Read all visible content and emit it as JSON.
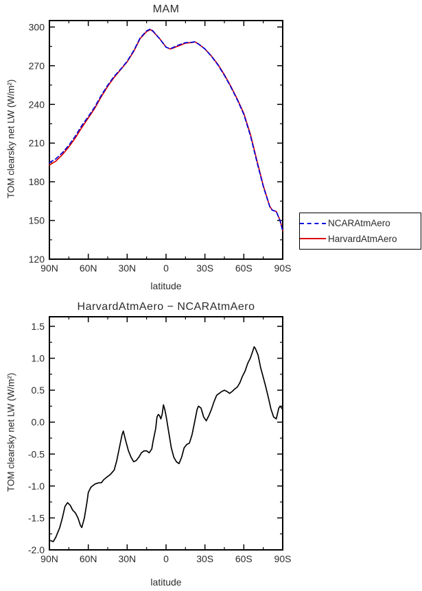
{
  "style": {
    "background": "#ffffff",
    "axis_color": "#000000",
    "text_color": "#2b2b2b"
  },
  "chart_data": [
    {
      "type": "line",
      "title": "MAM",
      "xlabel": "latitude",
      "ylabel": "TOM clearsky net LW (W/m²)",
      "xlim": [
        90,
        -90
      ],
      "ylim": [
        120,
        305
      ],
      "xticks": [
        90,
        60,
        30,
        0,
        -30,
        -60,
        -90
      ],
      "xtick_labels": [
        "90N",
        "60N",
        "30N",
        "0",
        "30S",
        "60S",
        "90S"
      ],
      "x_minor": [
        75,
        45,
        15,
        -15,
        -45,
        -75
      ],
      "yticks": [
        120,
        150,
        180,
        210,
        240,
        270,
        300
      ],
      "ytick_labels": [
        "120",
        "150",
        "180",
        "210",
        "240",
        "270",
        "300"
      ],
      "y_minor": [
        135,
        165,
        195,
        225,
        255,
        285
      ],
      "grid": false,
      "legend_position": "outside-right",
      "series": [
        {
          "name": "NCARAtmAero",
          "color": "#0000dd",
          "dash": "6 4",
          "x": [
            90,
            85,
            80,
            75,
            70,
            65,
            60,
            55,
            50,
            45,
            40,
            35,
            30,
            25,
            20,
            15,
            12,
            10,
            5,
            0,
            -3,
            -5,
            -10,
            -15,
            -20,
            -22,
            -25,
            -30,
            -35,
            -40,
            -45,
            -50,
            -55,
            -60,
            -65,
            -70,
            -75,
            -80,
            -82,
            -85,
            -88,
            -90
          ],
          "y": [
            194.9,
            197.8,
            202.5,
            208.3,
            215.4,
            223.6,
            230.6,
            238,
            247,
            254.9,
            261.8,
            267.3,
            273.4,
            281.6,
            291.5,
            297,
            298.5,
            296.8,
            290.9,
            284.4,
            283.2,
            283.9,
            286.2,
            287.9,
            288.2,
            288.5,
            286.8,
            283,
            277.3,
            270.6,
            262.5,
            253.5,
            243.5,
            232.3,
            216,
            195.9,
            176.3,
            160.7,
            157.9,
            157,
            149.8,
            141.8
          ]
        },
        {
          "name": "HarvardAtmAero",
          "color": "#dd0000",
          "dash": null,
          "x": [
            90,
            85,
            80,
            75,
            70,
            65,
            60,
            55,
            50,
            45,
            40,
            35,
            30,
            25,
            20,
            15,
            12,
            10,
            5,
            0,
            -3,
            -5,
            -10,
            -15,
            -20,
            -22,
            -25,
            -30,
            -35,
            -40,
            -45,
            -50,
            -55,
            -60,
            -65,
            -70,
            -75,
            -80,
            -82,
            -85,
            -88,
            -90
          ],
          "y": [
            193,
            196,
            201,
            207,
            214,
            222,
            229.5,
            237,
            246,
            254,
            261,
            267,
            273,
            281,
            291,
            296.5,
            298,
            296.5,
            291,
            284.5,
            283,
            283.5,
            285.5,
            287.5,
            288,
            288.5,
            287,
            283,
            277.5,
            271,
            263,
            254,
            244,
            233,
            217,
            197,
            177,
            161,
            158,
            157,
            150,
            142
          ]
        }
      ]
    },
    {
      "type": "line",
      "title": "HarvardAtmAero − NCARAtmAero",
      "xlabel": "latitude",
      "ylabel": "TOM clearsky net LW (W/m²)",
      "xlim": [
        90,
        -90
      ],
      "ylim": [
        -2.0,
        1.65
      ],
      "xticks": [
        90,
        60,
        30,
        0,
        -30,
        -60,
        -90
      ],
      "xtick_labels": [
        "90N",
        "60N",
        "30N",
        "0",
        "30S",
        "60S",
        "90S"
      ],
      "x_minor": [
        75,
        45,
        15,
        -15,
        -45,
        -75
      ],
      "yticks": [
        -2.0,
        -1.5,
        -1.0,
        -0.5,
        0.0,
        0.5,
        1.0,
        1.5
      ],
      "ytick_labels": [
        "-2.0",
        "-1.5",
        "-1.0",
        "-0.5",
        "0.0",
        "0.5",
        "1.0",
        "1.5"
      ],
      "y_minor": [
        -1.75,
        -1.25,
        -0.75,
        -0.25,
        0.25,
        0.75,
        1.25
      ],
      "grid": false,
      "legend_position": "none",
      "series": [
        {
          "name": "HarvardAtmAero − NCARAtmAero",
          "color": "#000000",
          "dash": null,
          "x": [
            90,
            87,
            85,
            82,
            80,
            78,
            76,
            74,
            72,
            70,
            68,
            66,
            65,
            63,
            61,
            60,
            58,
            55,
            52,
            50,
            48,
            45,
            43,
            40,
            38,
            36,
            34,
            33,
            31,
            29,
            27,
            25,
            23,
            21,
            19,
            17,
            15,
            13,
            11,
            10,
            8,
            7,
            6,
            5,
            4,
            3,
            2,
            1,
            0,
            -2,
            -4,
            -6,
            -8,
            -10,
            -12,
            -14,
            -16,
            -18,
            -20,
            -22,
            -24,
            -25,
            -27,
            -29,
            -31,
            -33,
            -35,
            -37,
            -39,
            -41,
            -43,
            -45,
            -47,
            -49,
            -51,
            -53,
            -55,
            -57,
            -59,
            -61,
            -63,
            -65,
            -67,
            -68,
            -69,
            -71,
            -73,
            -75,
            -77,
            -79,
            -81,
            -83,
            -85,
            -87,
            -88,
            -90
          ],
          "y": [
            -1.85,
            -1.87,
            -1.8,
            -1.65,
            -1.5,
            -1.32,
            -1.26,
            -1.3,
            -1.38,
            -1.42,
            -1.5,
            -1.62,
            -1.65,
            -1.5,
            -1.25,
            -1.1,
            -1.02,
            -0.97,
            -0.95,
            -0.95,
            -0.9,
            -0.85,
            -0.82,
            -0.75,
            -0.6,
            -0.4,
            -0.2,
            -0.14,
            -0.3,
            -0.45,
            -0.55,
            -0.62,
            -0.6,
            -0.55,
            -0.48,
            -0.45,
            -0.45,
            -0.48,
            -0.42,
            -0.3,
            -0.1,
            0.08,
            0.12,
            0.1,
            0.05,
            0.12,
            0.27,
            0.2,
            0.1,
            -0.15,
            -0.4,
            -0.55,
            -0.62,
            -0.65,
            -0.55,
            -0.4,
            -0.35,
            -0.33,
            -0.2,
            0.0,
            0.2,
            0.25,
            0.22,
            0.08,
            0.02,
            0.1,
            0.2,
            0.32,
            0.42,
            0.45,
            0.48,
            0.5,
            0.48,
            0.45,
            0.48,
            0.52,
            0.55,
            0.62,
            0.72,
            0.8,
            0.92,
            1.0,
            1.12,
            1.18,
            1.15,
            1.05,
            0.85,
            0.7,
            0.55,
            0.38,
            0.2,
            0.08,
            0.05,
            0.22,
            0.25,
            0.2
          ]
        }
      ]
    }
  ]
}
